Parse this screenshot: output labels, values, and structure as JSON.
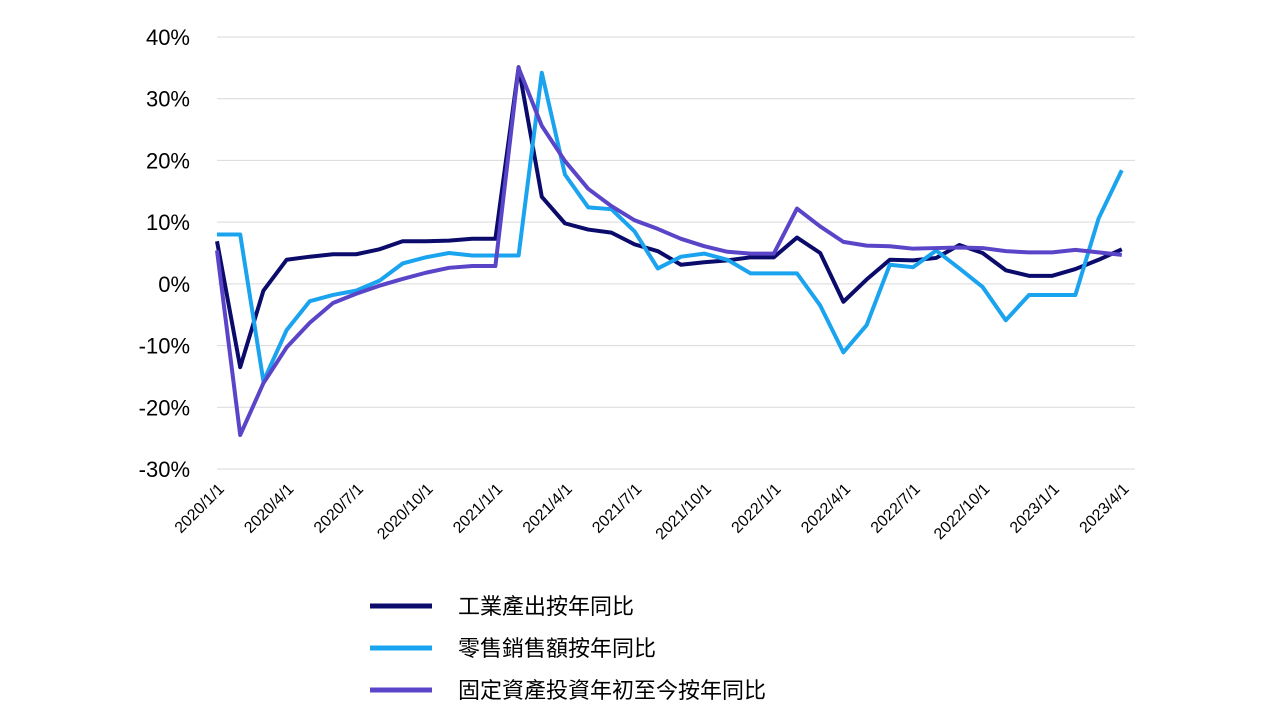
{
  "chart_data": {
    "type": "line",
    "categories": [
      "2020/1/1",
      null,
      null,
      "2020/4/1",
      null,
      null,
      "2020/7/1",
      null,
      null,
      "2020/10/1",
      null,
      null,
      "2021/1/1",
      null,
      null,
      "2021/4/1",
      null,
      null,
      "2021/7/1",
      null,
      null,
      "2021/10/1",
      null,
      null,
      "2022/1/1",
      null,
      null,
      "2022/4/1",
      null,
      null,
      "2022/7/1",
      null,
      null,
      "2022/10/1",
      null,
      null,
      "2023/1/1",
      null,
      null,
      "2023/4/1"
    ],
    "series": [
      {
        "name": "工業產出按年同比",
        "color": "#0b0b6b",
        "values": [
          6.9,
          -13.5,
          -1.1,
          3.9,
          4.4,
          4.8,
          4.8,
          5.6,
          6.9,
          6.9,
          7.0,
          7.3,
          7.3,
          35.1,
          14.1,
          9.8,
          8.8,
          8.3,
          6.4,
          5.3,
          3.1,
          3.5,
          3.8,
          4.3,
          4.3,
          7.5,
          5.0,
          -2.9,
          0.7,
          3.9,
          3.8,
          4.2,
          6.3,
          5.0,
          2.2,
          1.3,
          1.3,
          2.4,
          3.9,
          5.6
        ]
      },
      {
        "name": "零售銷售額按年同比",
        "color": "#1aa3ee",
        "values": [
          8.0,
          8.0,
          -15.8,
          -7.5,
          -2.8,
          -1.8,
          -1.1,
          0.5,
          3.3,
          4.3,
          5.0,
          4.6,
          4.6,
          4.6,
          34.2,
          17.7,
          12.4,
          12.1,
          8.5,
          2.5,
          4.4,
          4.9,
          3.9,
          1.7,
          1.7,
          1.7,
          -3.5,
          -11.1,
          -6.7,
          3.1,
          2.7,
          5.4,
          2.5,
          -0.5,
          -5.9,
          -1.8,
          -1.8,
          -1.8,
          10.6,
          18.4
        ]
      },
      {
        "name": "固定資產投資年初至今按年同比",
        "color": "#5a45c8",
        "values": [
          5.4,
          -24.5,
          -16.1,
          -10.3,
          -6.3,
          -3.1,
          -1.6,
          -0.3,
          0.8,
          1.8,
          2.6,
          2.9,
          2.9,
          35.0,
          25.6,
          19.9,
          15.4,
          12.6,
          10.3,
          8.9,
          7.3,
          6.1,
          5.2,
          4.9,
          4.9,
          12.2,
          9.3,
          6.8,
          6.2,
          6.1,
          5.7,
          5.8,
          5.9,
          5.8,
          5.3,
          5.1,
          5.1,
          5.5,
          5.1,
          4.7
        ]
      }
    ],
    "ylim": [
      -30,
      40
    ],
    "yticks": [
      {
        "value": -30,
        "label": "-30%"
      },
      {
        "value": -20,
        "label": "-20%"
      },
      {
        "value": -10,
        "label": "-10%"
      },
      {
        "value": 0,
        "label": "0%"
      },
      {
        "value": 10,
        "label": "10%"
      },
      {
        "value": 20,
        "label": "20%"
      },
      {
        "value": 30,
        "label": "30%"
      },
      {
        "value": 40,
        "label": "40%"
      }
    ],
    "grid": true
  }
}
